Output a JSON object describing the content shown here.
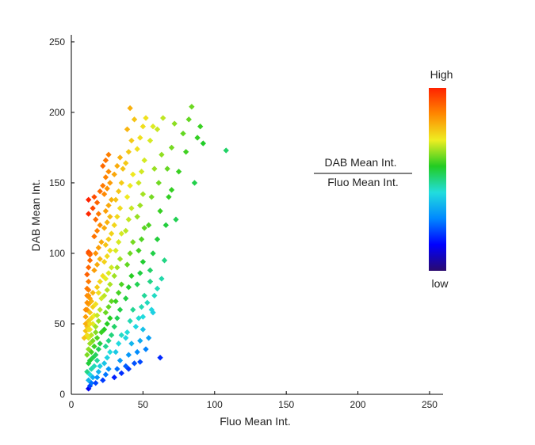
{
  "chart_data": {
    "type": "scatter",
    "title": "",
    "xlabel": "Fluo Mean Int.",
    "ylabel": "DAB Mean Int.",
    "xlim": [
      0,
      255
    ],
    "ylim": [
      0,
      255
    ],
    "xticks": [
      0,
      50,
      100,
      150,
      200,
      250
    ],
    "yticks": [
      0,
      50,
      100,
      150,
      200,
      250
    ],
    "grid": false,
    "colorbar": {
      "colormap": "jet",
      "high_label": "High",
      "low_label": "low",
      "colors": [
        "#2a0a6e",
        "#0000ff",
        "#0088ff",
        "#22dddd",
        "#22cc22",
        "#eeee22",
        "#ff8800",
        "#ff2200"
      ]
    },
    "ratio_annotation": {
      "numerator": "DAB Mean Int.",
      "denominator": "Fluo Mean Int."
    },
    "color_value": "y / x ratio (DAB Mean Int. / Fluo Mean Int.)",
    "points": [
      [
        12,
        4
      ],
      [
        13,
        6
      ],
      [
        14,
        8
      ],
      [
        12,
        10
      ],
      [
        15,
        12
      ],
      [
        13,
        14
      ],
      [
        11,
        16
      ],
      [
        14,
        18
      ],
      [
        16,
        20
      ],
      [
        12,
        22
      ],
      [
        13,
        24
      ],
      [
        15,
        26
      ],
      [
        11,
        28
      ],
      [
        14,
        30
      ],
      [
        12,
        32
      ],
      [
        16,
        34
      ],
      [
        13,
        36
      ],
      [
        15,
        38
      ],
      [
        12,
        40
      ],
      [
        14,
        42
      ],
      [
        17,
        44
      ],
      [
        13,
        46
      ],
      [
        11,
        48
      ],
      [
        15,
        50
      ],
      [
        12,
        52
      ],
      [
        14,
        54
      ],
      [
        16,
        56
      ],
      [
        13,
        58
      ],
      [
        11,
        60
      ],
      [
        15,
        62
      ],
      [
        12,
        64
      ],
      [
        14,
        66
      ],
      [
        13,
        68
      ],
      [
        11,
        70
      ],
      [
        15,
        72
      ],
      [
        12,
        74
      ],
      [
        10,
        45
      ],
      [
        10,
        50
      ],
      [
        9,
        40
      ],
      [
        10,
        55
      ],
      [
        11,
        42
      ],
      [
        12,
        46
      ],
      [
        13,
        50
      ],
      [
        10,
        60
      ],
      [
        11,
        65
      ],
      [
        12,
        70
      ],
      [
        11,
        75
      ],
      [
        12,
        80
      ],
      [
        11,
        85
      ],
      [
        12,
        90
      ],
      [
        13,
        95
      ],
      [
        12,
        100
      ],
      [
        13,
        100
      ],
      [
        12,
        101
      ],
      [
        13,
        99
      ],
      [
        12,
        128
      ],
      [
        12,
        138
      ],
      [
        17,
        8
      ],
      [
        18,
        12
      ],
      [
        19,
        16
      ],
      [
        20,
        20
      ],
      [
        18,
        24
      ],
      [
        17,
        28
      ],
      [
        19,
        32
      ],
      [
        20,
        36
      ],
      [
        18,
        40
      ],
      [
        21,
        44
      ],
      [
        17,
        48
      ],
      [
        19,
        52
      ],
      [
        18,
        56
      ],
      [
        20,
        60
      ],
      [
        17,
        64
      ],
      [
        21,
        68
      ],
      [
        19,
        72
      ],
      [
        18,
        76
      ],
      [
        20,
        80
      ],
      [
        22,
        84
      ],
      [
        16,
        88
      ],
      [
        18,
        92
      ],
      [
        20,
        96
      ],
      [
        17,
        100
      ],
      [
        19,
        104
      ],
      [
        21,
        108
      ],
      [
        16,
        112
      ],
      [
        18,
        116
      ],
      [
        20,
        120
      ],
      [
        17,
        124
      ],
      [
        19,
        128
      ],
      [
        15,
        132
      ],
      [
        18,
        136
      ],
      [
        16,
        140
      ],
      [
        20,
        144
      ],
      [
        22,
        148
      ],
      [
        22,
        10
      ],
      [
        24,
        14
      ],
      [
        26,
        18
      ],
      [
        23,
        22
      ],
      [
        25,
        26
      ],
      [
        27,
        30
      ],
      [
        24,
        34
      ],
      [
        26,
        38
      ],
      [
        28,
        42
      ],
      [
        23,
        46
      ],
      [
        25,
        50
      ],
      [
        27,
        54
      ],
      [
        24,
        58
      ],
      [
        26,
        62
      ],
      [
        28,
        66
      ],
      [
        23,
        70
      ],
      [
        25,
        74
      ],
      [
        27,
        78
      ],
      [
        24,
        82
      ],
      [
        26,
        86
      ],
      [
        28,
        90
      ],
      [
        23,
        94
      ],
      [
        25,
        98
      ],
      [
        27,
        102
      ],
      [
        24,
        106
      ],
      [
        26,
        110
      ],
      [
        28,
        114
      ],
      [
        23,
        118
      ],
      [
        25,
        122
      ],
      [
        27,
        126
      ],
      [
        24,
        130
      ],
      [
        26,
        134
      ],
      [
        28,
        138
      ],
      [
        23,
        142
      ],
      [
        25,
        146
      ],
      [
        27,
        150
      ],
      [
        24,
        154
      ],
      [
        26,
        158
      ],
      [
        22,
        162
      ],
      [
        24,
        166
      ],
      [
        26,
        170
      ],
      [
        30,
        12
      ],
      [
        32,
        18
      ],
      [
        34,
        24
      ],
      [
        31,
        30
      ],
      [
        33,
        36
      ],
      [
        35,
        42
      ],
      [
        30,
        48
      ],
      [
        32,
        54
      ],
      [
        34,
        60
      ],
      [
        31,
        66
      ],
      [
        33,
        72
      ],
      [
        35,
        78
      ],
      [
        30,
        84
      ],
      [
        32,
        90
      ],
      [
        34,
        96
      ],
      [
        31,
        102
      ],
      [
        33,
        108
      ],
      [
        35,
        114
      ],
      [
        30,
        120
      ],
      [
        32,
        126
      ],
      [
        34,
        132
      ],
      [
        31,
        138
      ],
      [
        33,
        144
      ],
      [
        35,
        150
      ],
      [
        30,
        156
      ],
      [
        32,
        162
      ],
      [
        34,
        168
      ],
      [
        36,
        160
      ],
      [
        38,
        20
      ],
      [
        40,
        28
      ],
      [
        42,
        36
      ],
      [
        39,
        44
      ],
      [
        41,
        52
      ],
      [
        43,
        60
      ],
      [
        38,
        68
      ],
      [
        40,
        76
      ],
      [
        42,
        84
      ],
      [
        39,
        92
      ],
      [
        41,
        100
      ],
      [
        43,
        108
      ],
      [
        38,
        116
      ],
      [
        40,
        124
      ],
      [
        42,
        132
      ],
      [
        39,
        140
      ],
      [
        41,
        148
      ],
      [
        43,
        156
      ],
      [
        38,
        164
      ],
      [
        40,
        172
      ],
      [
        42,
        180
      ],
      [
        39,
        188
      ],
      [
        44,
        195
      ],
      [
        41,
        203
      ],
      [
        46,
        30
      ],
      [
        48,
        38
      ],
      [
        50,
        46
      ],
      [
        47,
        54
      ],
      [
        49,
        62
      ],
      [
        51,
        70
      ],
      [
        46,
        78
      ],
      [
        48,
        86
      ],
      [
        50,
        94
      ],
      [
        47,
        102
      ],
      [
        49,
        110
      ],
      [
        51,
        118
      ],
      [
        46,
        126
      ],
      [
        48,
        134
      ],
      [
        50,
        142
      ],
      [
        47,
        150
      ],
      [
        49,
        158
      ],
      [
        51,
        166
      ],
      [
        46,
        174
      ],
      [
        48,
        182
      ],
      [
        50,
        190
      ],
      [
        52,
        196
      ],
      [
        54,
        40
      ],
      [
        56,
        60
      ],
      [
        55,
        80
      ],
      [
        57,
        100
      ],
      [
        54,
        120
      ],
      [
        56,
        140
      ],
      [
        58,
        160
      ],
      [
        55,
        180
      ],
      [
        57,
        190
      ],
      [
        60,
        110
      ],
      [
        62,
        130
      ],
      [
        61,
        150
      ],
      [
        63,
        170
      ],
      [
        60,
        188
      ],
      [
        64,
        196
      ],
      [
        66,
        120
      ],
      [
        68,
        140
      ],
      [
        67,
        160
      ],
      [
        70,
        175
      ],
      [
        72,
        192
      ],
      [
        70,
        145
      ],
      [
        73,
        124
      ],
      [
        75,
        158
      ],
      [
        78,
        185
      ],
      [
        80,
        172
      ],
      [
        82,
        195
      ],
      [
        84,
        204
      ],
      [
        86,
        150
      ],
      [
        88,
        182
      ],
      [
        90,
        190
      ],
      [
        92,
        178
      ],
      [
        108,
        173
      ],
      [
        62,
        26
      ],
      [
        48,
        23
      ],
      [
        44,
        22
      ],
      [
        52,
        32
      ],
      [
        35,
        15
      ],
      [
        40,
        18
      ],
      [
        38,
        40
      ],
      [
        45,
        48
      ],
      [
        65,
        95
      ],
      [
        63,
        82
      ],
      [
        58,
        70
      ],
      [
        55,
        88
      ],
      [
        60,
        75
      ],
      [
        57,
        58
      ],
      [
        50,
        55
      ],
      [
        53,
        65
      ]
    ]
  }
}
